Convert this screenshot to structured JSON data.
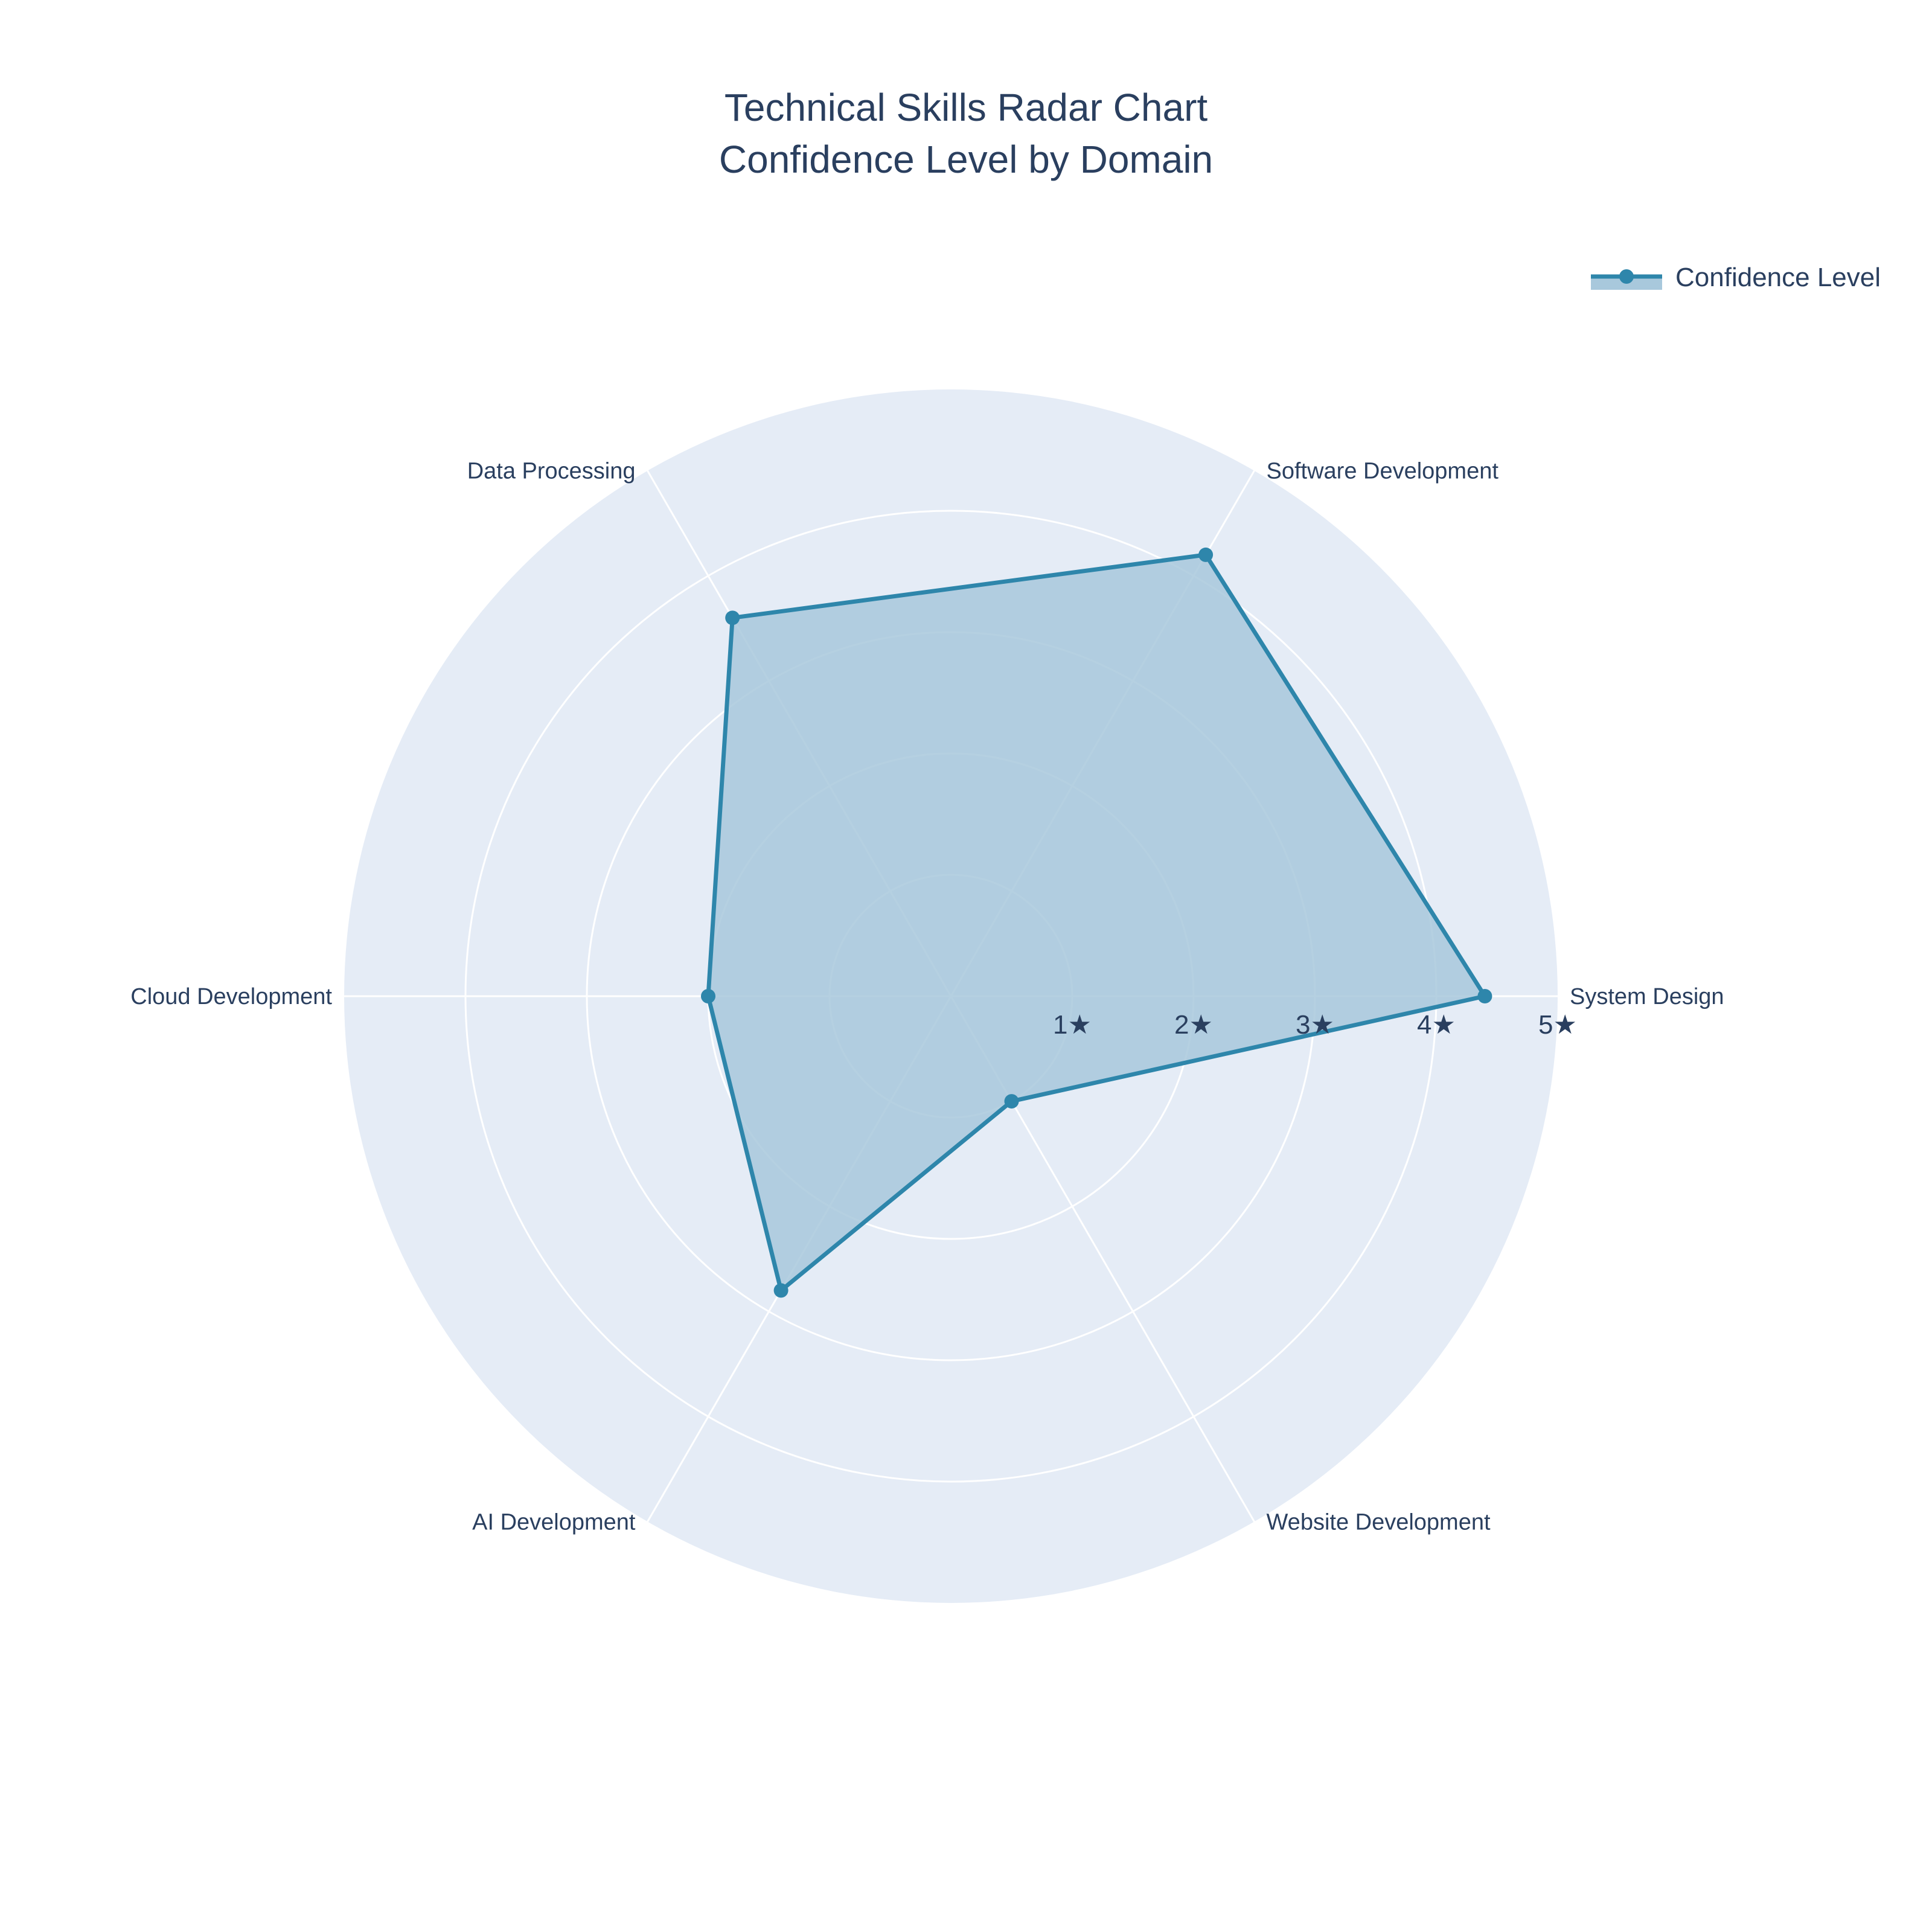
{
  "chart_data": {
    "type": "radar",
    "title": "Technical Skills Radar Chart",
    "subtitle": "Confidence Level by Domain",
    "categories": [
      "System Design",
      "Software Development",
      "Data Processing",
      "Cloud Development",
      "AI Development",
      "Website Development"
    ],
    "series": [
      {
        "name": "Confidence Level",
        "values": [
          4.4,
          4.2,
          3.6,
          2.0,
          2.8,
          1.0
        ]
      }
    ],
    "radial_range": [
      0,
      5
    ],
    "tick_labels": [
      "1★",
      "2★",
      "3★",
      "4★",
      "5★"
    ],
    "grid": true,
    "legend_position": "top-right",
    "colors": {
      "series_line": "#2e86ab",
      "series_fill": "#a8c8dc",
      "polar_background": "#e5ecf6",
      "grid": "#ffffff",
      "text": "#2a3f5f"
    }
  }
}
